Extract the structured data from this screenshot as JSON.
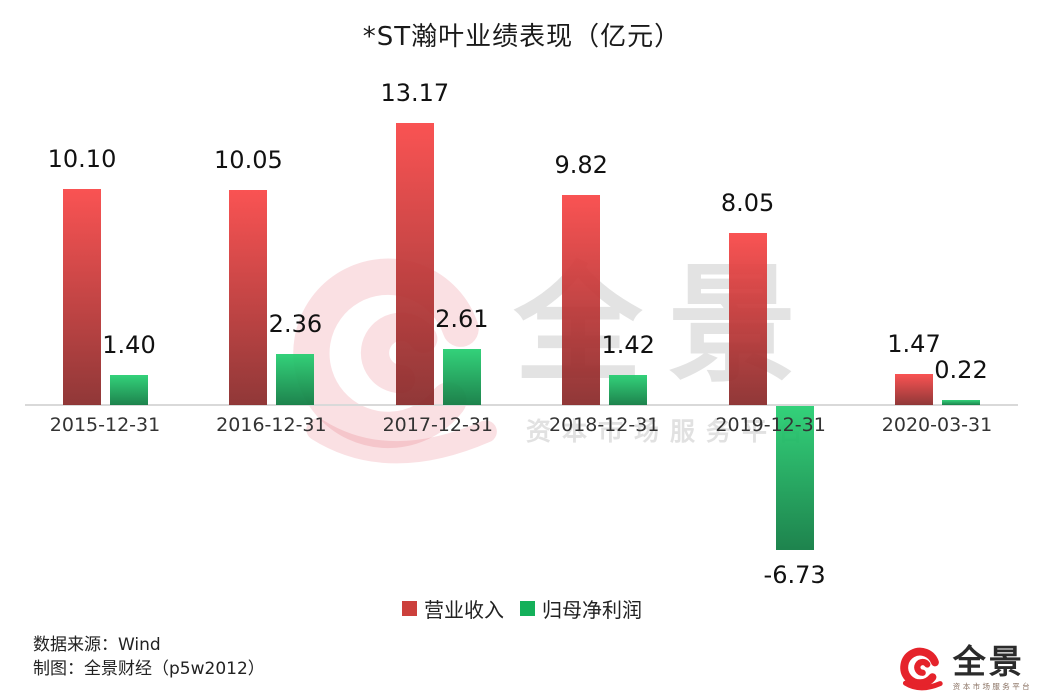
{
  "title": "*ST瀚叶业绩表现（亿元）",
  "chart_data": {
    "type": "bar",
    "title": "*ST瀚叶业绩表现（亿元）",
    "categories": [
      "2015-12-31",
      "2016-12-31",
      "2017-12-31",
      "2018-12-31",
      "2019-12-31",
      "2020-03-31"
    ],
    "series": [
      {
        "name": "营业收入",
        "values": [
          10.1,
          10.05,
          13.17,
          9.82,
          8.05,
          1.47
        ],
        "color_top": "#f94646",
        "color_bottom": "#882929",
        "legend_color": "#cc403c"
      },
      {
        "name": "归母净利润",
        "values": [
          1.4,
          2.36,
          2.61,
          1.42,
          -6.73,
          0.22
        ],
        "color_top": "#24ce70",
        "color_bottom": "#0d7a40",
        "legend_color": "#14b05a"
      }
    ],
    "xlabel": "",
    "ylabel": "亿元",
    "ylim": [
      -8,
      14
    ],
    "grid": false,
    "legend_position": "bottom-center",
    "value_label_decimals": 2
  },
  "footer": {
    "source": "数据来源：Wind",
    "credit": "制图：全景财经（p5w2012）"
  },
  "watermark": {
    "brand": "全景",
    "tagline": "资本市场服务平台"
  },
  "logo": {
    "brand": "全景",
    "tagline": "资本市场服务平台"
  }
}
